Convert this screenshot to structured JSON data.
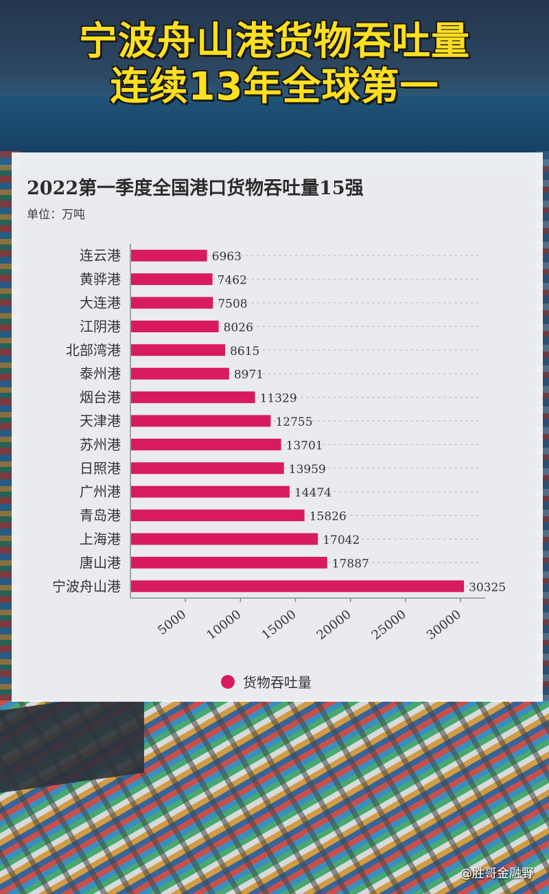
{
  "headline": {
    "line1": "宁波舟山港货物吞吐量",
    "line2": "连续13年全球第一"
  },
  "colors": {
    "bar": "#d81b60",
    "headline": "#ffe020"
  },
  "watermark": "@胜哥金融野",
  "chart_data": {
    "type": "bar",
    "orientation": "horizontal",
    "title": "2022第一季度全国港口货物吞吐量15强",
    "unit": "单位：万吨",
    "categories": [
      "连云港",
      "黄骅港",
      "大连港",
      "江阴港",
      "北部湾港",
      "泰州港",
      "烟台港",
      "天津港",
      "苏州港",
      "日照港",
      "广州港",
      "青岛港",
      "上海港",
      "唐山港",
      "宁波舟山港"
    ],
    "series": [
      {
        "name": "货物吞吐量",
        "values": [
          6963,
          7462,
          7508,
          8026,
          8615,
          8971,
          11329,
          12755,
          13701,
          13959,
          14474,
          15826,
          17042,
          17887,
          30325
        ]
      }
    ],
    "x_ticks": [
      "5000",
      "10000",
      "15000",
      "20000",
      "25000",
      "30000"
    ],
    "xlim": [
      0,
      32000
    ],
    "grid": "horizontal dashed",
    "legend_position": "bottom"
  }
}
